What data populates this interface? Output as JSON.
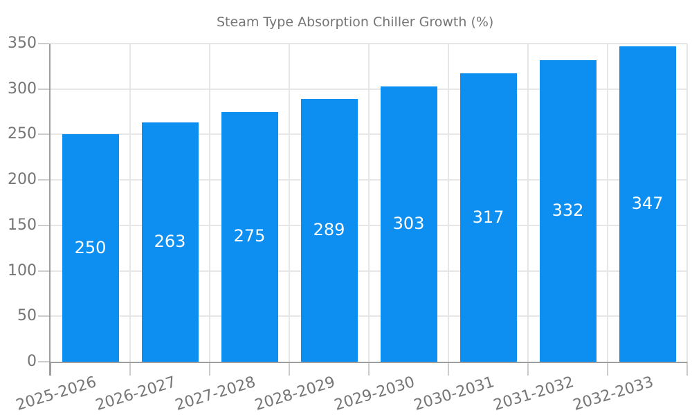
{
  "legend": {
    "position": "top"
  },
  "chart_data": {
    "type": "bar",
    "title": "Steam Type Absorption Chiller Growth (%)",
    "categories": [
      "2025-2026",
      "2026-2027",
      "2027-2028",
      "2028-2029",
      "2029-2030",
      "2030-2031",
      "2031-2032",
      "2032-2033"
    ],
    "values": [
      250,
      263,
      275,
      289,
      303,
      317,
      332,
      347
    ],
    "xlabel": "",
    "ylabel": "",
    "ylim": [
      0,
      350
    ],
    "yticks": [
      0,
      50,
      100,
      150,
      200,
      250,
      300,
      350
    ],
    "grid": true,
    "legend_position": "top",
    "bar_color": "#0d8ff2",
    "value_label_color": "#ffffff",
    "axis_text_color": "#757575",
    "gridline_color": "#e6e6e6",
    "axis_line_color": "#9e9e9e",
    "tick_color": "#cccccc",
    "background_color": "#ffffff"
  }
}
